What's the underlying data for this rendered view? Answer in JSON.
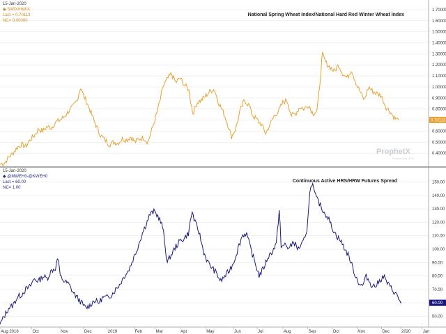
{
  "colors": {
    "top_series": "#e8a030",
    "bottom_series": "#1a1a7a",
    "top_header": "#d08a20",
    "bottom_header": "#2a2a8a",
    "grid": "#e3e3e3"
  },
  "top_panel": {
    "date": "15-Jan-2020",
    "series_label": "SWIX/HWIX",
    "last_label": "Last = 0.70113",
    "nc_label": "NC= 0.00000",
    "title": "National Spring Wheat Index/National Hard Red Winter Wheat Index",
    "last_value_label": "0.70113",
    "watermark": "ProphetX",
    "watermark_sub": "Powered by DTN"
  },
  "bottom_panel": {
    "date": "15-Jan-2020",
    "series_label": "@MWEH0-@KWEH0",
    "last_label": "Last = 60.00",
    "nc_label": "NC= 1.00",
    "title": "Continuous Active HRS/HRW Futures Spread",
    "last_value_label": "60.00"
  },
  "chart_data": [
    {
      "type": "line",
      "title": "National Spring Wheat Index/National Hard Red Winter Wheat Index",
      "ylim": [
        0.3,
        1.75
      ],
      "yticks": [
        "1.70000",
        "1.60000",
        "1.50000",
        "1.40000",
        "1.30000",
        "1.20000",
        "1.10000",
        "1.00000",
        "0.90000",
        "0.80000",
        "0.70000",
        "0.60000",
        "0.50000",
        "0.40000"
      ],
      "ytick_values": [
        1.7,
        1.6,
        1.5,
        1.4,
        1.3,
        1.2,
        1.1,
        1.0,
        0.9,
        0.8,
        0.7,
        0.6,
        0.5,
        0.4
      ],
      "x_label_positions": [
        0,
        0.055,
        0.14,
        0.22,
        0.283,
        0.362,
        0.424,
        0.503,
        0.57,
        0.645,
        0.71,
        0.802,
        0.87,
        0.935,
        0.99
      ],
      "anchors": [
        [
          0.0,
          0.3
        ],
        [
          0.01,
          0.31
        ],
        [
          0.02,
          0.36
        ],
        [
          0.03,
          0.4
        ],
        [
          0.04,
          0.45
        ],
        [
          0.05,
          0.48
        ],
        [
          0.06,
          0.46
        ],
        [
          0.07,
          0.52
        ],
        [
          0.08,
          0.56
        ],
        [
          0.09,
          0.62
        ],
        [
          0.1,
          0.6
        ],
        [
          0.11,
          0.64
        ],
        [
          0.12,
          0.63
        ],
        [
          0.13,
          0.68
        ],
        [
          0.14,
          0.7
        ],
        [
          0.15,
          0.73
        ],
        [
          0.16,
          0.78
        ],
        [
          0.17,
          0.82
        ],
        [
          0.18,
          0.88
        ],
        [
          0.188,
          1.0
        ],
        [
          0.195,
          0.92
        ],
        [
          0.205,
          0.84
        ],
        [
          0.215,
          0.74
        ],
        [
          0.225,
          0.64
        ],
        [
          0.235,
          0.56
        ],
        [
          0.245,
          0.52
        ],
        [
          0.255,
          0.48
        ],
        [
          0.265,
          0.5
        ],
        [
          0.275,
          0.49
        ],
        [
          0.285,
          0.53
        ],
        [
          0.295,
          0.52
        ],
        [
          0.305,
          0.55
        ],
        [
          0.315,
          0.5
        ],
        [
          0.325,
          0.53
        ],
        [
          0.335,
          0.54
        ],
        [
          0.345,
          0.5
        ],
        [
          0.355,
          0.62
        ],
        [
          0.365,
          0.75
        ],
        [
          0.375,
          0.9
        ],
        [
          0.38,
          1.0
        ],
        [
          0.39,
          1.07
        ],
        [
          0.4,
          1.12
        ],
        [
          0.41,
          1.04
        ],
        [
          0.42,
          1.08
        ],
        [
          0.43,
          1.02
        ],
        [
          0.44,
          0.98
        ],
        [
          0.45,
          0.76
        ],
        [
          0.46,
          0.86
        ],
        [
          0.47,
          0.88
        ],
        [
          0.48,
          0.92
        ],
        [
          0.49,
          0.96
        ],
        [
          0.5,
          0.98
        ],
        [
          0.51,
          0.86
        ],
        [
          0.52,
          0.78
        ],
        [
          0.53,
          0.68
        ],
        [
          0.54,
          0.55
        ],
        [
          0.55,
          0.62
        ],
        [
          0.56,
          0.78
        ],
        [
          0.57,
          0.88
        ],
        [
          0.58,
          0.84
        ],
        [
          0.59,
          0.74
        ],
        [
          0.6,
          0.7
        ],
        [
          0.61,
          0.66
        ],
        [
          0.62,
          0.58
        ],
        [
          0.63,
          0.66
        ],
        [
          0.64,
          0.74
        ],
        [
          0.65,
          0.78
        ],
        [
          0.66,
          0.86
        ],
        [
          0.67,
          0.88
        ],
        [
          0.68,
          0.74
        ],
        [
          0.69,
          0.76
        ],
        [
          0.7,
          0.82
        ],
        [
          0.71,
          0.8
        ],
        [
          0.72,
          0.84
        ],
        [
          0.73,
          0.76
        ],
        [
          0.74,
          0.78
        ],
        [
          0.748,
          1.1
        ],
        [
          0.752,
          1.3
        ],
        [
          0.76,
          1.22
        ],
        [
          0.77,
          1.18
        ],
        [
          0.78,
          1.14
        ],
        [
          0.79,
          1.2
        ],
        [
          0.8,
          1.12
        ],
        [
          0.81,
          1.08
        ],
        [
          0.82,
          1.16
        ],
        [
          0.83,
          1.04
        ],
        [
          0.84,
          0.96
        ],
        [
          0.85,
          0.88
        ],
        [
          0.86,
          1.0
        ],
        [
          0.87,
          0.96
        ],
        [
          0.88,
          0.94
        ],
        [
          0.89,
          0.92
        ],
        [
          0.9,
          0.82
        ],
        [
          0.91,
          0.78
        ],
        [
          0.92,
          0.72
        ],
        [
          0.93,
          0.7
        ]
      ],
      "noise_amplitude": 0.025,
      "noise_seed": 7,
      "last_value": 0.70113
    },
    {
      "type": "line",
      "title": "Continuous Active HRS/HRW Futures Spread",
      "ylim": [
        44,
        156
      ],
      "yticks": [
        "150.00",
        "140.00",
        "130.00",
        "120.00",
        "110.00",
        "100.00",
        "90.00",
        "80.00",
        "70.00",
        "60.00",
        "50.00"
      ],
      "ytick_values": [
        150,
        140,
        130,
        120,
        110,
        100,
        90,
        80,
        70,
        60,
        50
      ],
      "x_labels": [
        "Aug 2018",
        "Oct",
        "Nov",
        "Dec",
        "2019",
        "Feb",
        "Mar",
        "Apr",
        "May",
        "Jun",
        "Jul",
        "Aug",
        "Sep",
        "Oct",
        "Nov",
        "Dec",
        "2020",
        "Jan"
      ],
      "x_label_positions": [
        0.0,
        0.074,
        0.14,
        0.195,
        0.25,
        0.313,
        0.362,
        0.42,
        0.48,
        0.545,
        0.6,
        0.66,
        0.718,
        0.775,
        0.833,
        0.89,
        0.935,
        0.985
      ],
      "anchors": [
        [
          0.0,
          44
        ],
        [
          0.01,
          50
        ],
        [
          0.02,
          56
        ],
        [
          0.03,
          58
        ],
        [
          0.04,
          64
        ],
        [
          0.05,
          66
        ],
        [
          0.06,
          70
        ],
        [
          0.07,
          72
        ],
        [
          0.08,
          78
        ],
        [
          0.09,
          76
        ],
        [
          0.1,
          80
        ],
        [
          0.11,
          78
        ],
        [
          0.12,
          84
        ],
        [
          0.13,
          86
        ],
        [
          0.135,
          95
        ],
        [
          0.14,
          80
        ],
        [
          0.15,
          76
        ],
        [
          0.16,
          74
        ],
        [
          0.17,
          68
        ],
        [
          0.18,
          64
        ],
        [
          0.19,
          60
        ],
        [
          0.2,
          56
        ],
        [
          0.21,
          58
        ],
        [
          0.22,
          62
        ],
        [
          0.23,
          60
        ],
        [
          0.24,
          64
        ],
        [
          0.25,
          64
        ],
        [
          0.26,
          66
        ],
        [
          0.27,
          70
        ],
        [
          0.28,
          74
        ],
        [
          0.29,
          80
        ],
        [
          0.3,
          84
        ],
        [
          0.31,
          92
        ],
        [
          0.32,
          100
        ],
        [
          0.33,
          110
        ],
        [
          0.34,
          118
        ],
        [
          0.35,
          126
        ],
        [
          0.36,
          128
        ],
        [
          0.37,
          124
        ],
        [
          0.38,
          116
        ],
        [
          0.39,
          90
        ],
        [
          0.4,
          96
        ],
        [
          0.41,
          102
        ],
        [
          0.42,
          106
        ],
        [
          0.43,
          108
        ],
        [
          0.44,
          112
        ],
        [
          0.448,
          128
        ],
        [
          0.455,
          120
        ],
        [
          0.465,
          112
        ],
        [
          0.475,
          98
        ],
        [
          0.485,
          90
        ],
        [
          0.495,
          86
        ],
        [
          0.505,
          82
        ],
        [
          0.515,
          76
        ],
        [
          0.525,
          80
        ],
        [
          0.535,
          84
        ],
        [
          0.545,
          90
        ],
        [
          0.555,
          100
        ],
        [
          0.565,
          110
        ],
        [
          0.575,
          112
        ],
        [
          0.585,
          100
        ],
        [
          0.595,
          90
        ],
        [
          0.605,
          80
        ],
        [
          0.615,
          86
        ],
        [
          0.625,
          94
        ],
        [
          0.635,
          98
        ],
        [
          0.645,
          104
        ],
        [
          0.652,
          132
        ],
        [
          0.656,
          100
        ],
        [
          0.665,
          104
        ],
        [
          0.675,
          100
        ],
        [
          0.685,
          106
        ],
        [
          0.695,
          100
        ],
        [
          0.705,
          104
        ],
        [
          0.715,
          110
        ],
        [
          0.722,
          140
        ],
        [
          0.728,
          150
        ],
        [
          0.735,
          140
        ],
        [
          0.745,
          134
        ],
        [
          0.755,
          128
        ],
        [
          0.765,
          124
        ],
        [
          0.775,
          116
        ],
        [
          0.785,
          110
        ],
        [
          0.795,
          106
        ],
        [
          0.805,
          100
        ],
        [
          0.815,
          94
        ],
        [
          0.825,
          84
        ],
        [
          0.835,
          76
        ],
        [
          0.845,
          72
        ],
        [
          0.855,
          80
        ],
        [
          0.865,
          74
        ],
        [
          0.875,
          72
        ],
        [
          0.885,
          76
        ],
        [
          0.895,
          80
        ],
        [
          0.905,
          74
        ],
        [
          0.915,
          70
        ],
        [
          0.925,
          66
        ],
        [
          0.932,
          62
        ],
        [
          0.937,
          60
        ]
      ],
      "noise_amplitude": 2.2,
      "noise_seed": 13,
      "last_value": 60.0
    }
  ]
}
